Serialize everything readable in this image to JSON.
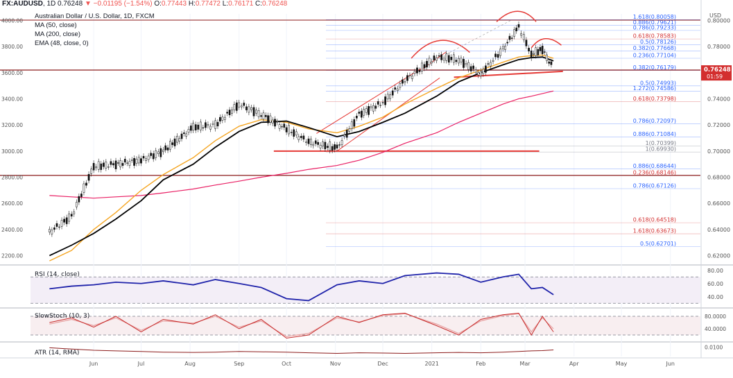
{
  "header": {
    "symbol": "FX:AUDUSD",
    "interval": "1D",
    "last": "0.76248",
    "arrow": "▼",
    "change": "−0.01195 (−1.54%)",
    "o_label": "O:",
    "o": "0.77443",
    "h_label": "H:",
    "h": "0.77472",
    "l_label": "L:",
    "l": "0.76171",
    "c_label": "C:",
    "c": "0.76248"
  },
  "legend": {
    "title": "Australian Dollar / U.S. Dollar, 1D, FXCM",
    "ma50": "MA (50, close)",
    "ma200": "MA (200, close)",
    "ema48": "EMA (48, close, 0)"
  },
  "price_badge": {
    "price": "0.76248",
    "countdown": "01:59",
    "color": "#d32f2f"
  },
  "currency": "USD",
  "colors": {
    "price": "#000000",
    "ma50": "#000000",
    "ma200": "#e91e63",
    "ema48": "#f5a623",
    "drawing": "#e53935",
    "fib_blue": "#2962ff",
    "fib_red": "#d32f2f",
    "rsi": "#1e22aa",
    "stoch_k": "#c62828",
    "stoch_d": "#e8a0a0",
    "atr": "#8b1a1a"
  },
  "chart_data": [
    {
      "type": "line",
      "title": "Australian Dollar / U.S. Dollar, 1D, FXCM",
      "series_names": [
        "MA (50, close)",
        "MA (200, close)",
        "EMA (48, close, 0)"
      ],
      "x": [
        "2020-05-04",
        "2020-05-18",
        "2020-06-01",
        "2020-06-15",
        "2020-07-01",
        "2020-07-15",
        "2020-08-03",
        "2020-08-17",
        "2020-09-01",
        "2020-09-15",
        "2020-10-01",
        "2020-10-15",
        "2020-11-02",
        "2020-11-16",
        "2020-12-01",
        "2020-12-15",
        "2021-01-04",
        "2021-01-18",
        "2021-02-01",
        "2021-02-15",
        "2021-02-25",
        "2021-03-05",
        "2021-03-12",
        "2021-03-19"
      ],
      "price": [
        0.638,
        0.65,
        0.688,
        0.69,
        0.693,
        0.7,
        0.718,
        0.72,
        0.736,
        0.728,
        0.717,
        0.707,
        0.702,
        0.728,
        0.737,
        0.754,
        0.772,
        0.77,
        0.759,
        0.778,
        0.795,
        0.774,
        0.778,
        0.7625
      ],
      "ma50": [
        0.62,
        0.628,
        0.637,
        0.648,
        0.662,
        0.678,
        0.69,
        0.703,
        0.715,
        0.722,
        0.723,
        0.718,
        0.711,
        0.715,
        0.722,
        0.729,
        0.742,
        0.753,
        0.76,
        0.766,
        0.77,
        0.7715,
        0.772,
        0.769
      ],
      "ma200": [
        0.666,
        0.665,
        0.664,
        0.665,
        0.666,
        0.668,
        0.671,
        0.674,
        0.677,
        0.68,
        0.683,
        0.686,
        0.689,
        0.693,
        0.699,
        0.706,
        0.714,
        0.722,
        0.729,
        0.736,
        0.74,
        0.742,
        0.744,
        0.746
      ],
      "ema48": [
        0.616,
        0.624,
        0.64,
        0.653,
        0.67,
        0.682,
        0.695,
        0.708,
        0.719,
        0.724,
        0.722,
        0.717,
        0.714,
        0.719,
        0.726,
        0.736,
        0.748,
        0.756,
        0.762,
        0.768,
        0.772,
        0.773,
        0.7735,
        0.771
      ],
      "ylim": [
        0.615,
        0.805
      ],
      "price_axis": [
        "0.80000",
        "0.78000",
        "0.76000",
        "0.74000",
        "0.72000",
        "0.70000",
        "0.68000",
        "0.66000",
        "0.64000",
        "0.62000"
      ],
      "left_axis": [
        "4000.00",
        "3800.00",
        "3600.00",
        "3400.00",
        "3200.00",
        "3000.00",
        "2800.00",
        "2600.00",
        "2400.00",
        "2200.00"
      ],
      "time_axis": [
        "Jun",
        "Jul",
        "Aug",
        "Sep",
        "Oct",
        "Nov",
        "Dec",
        "2021",
        "Feb",
        "Mar",
        "Apr",
        "May",
        "Jun"
      ],
      "fib_labels": [
        {
          "label": "1.618(0.80058)",
          "value": 0.80058,
          "color": "blue"
        },
        {
          "label": "0.886(0.79621)",
          "value": 0.79621,
          "color": "blue"
        },
        {
          "label": "0.786(0.79233)",
          "value": 0.79233,
          "color": "blue"
        },
        {
          "label": "0.618(0.78583)",
          "value": 0.78583,
          "color": "red"
        },
        {
          "label": "0.5(0.78126)",
          "value": 0.78126,
          "color": "blue"
        },
        {
          "label": "0.382(0.77668)",
          "value": 0.77668,
          "color": "blue"
        },
        {
          "label": "0.236(0.77104)",
          "value": 0.77104,
          "color": "blue"
        },
        {
          "label": "0.382(0.76179)",
          "value": 0.76179,
          "color": "blue"
        },
        {
          "label": "0.5(0.74993)",
          "value": 0.74993,
          "color": "blue"
        },
        {
          "label": "1.272(0.74586)",
          "value": 0.74586,
          "color": "blue"
        },
        {
          "label": "0.618(0.73798)",
          "value": 0.73798,
          "color": "red"
        },
        {
          "label": "0.786(0.72097)",
          "value": 0.72097,
          "color": "blue"
        },
        {
          "label": "0.886(0.71084)",
          "value": 0.71084,
          "color": "blue"
        },
        {
          "label": "1(0.70399)",
          "value": 0.70399,
          "color": "gray"
        },
        {
          "label": "1(0.69930)",
          "value": 0.6993,
          "color": "gray"
        },
        {
          "label": "0.886(0.68644)",
          "value": 0.68644,
          "color": "blue"
        },
        {
          "label": "0.236(0.68146)",
          "value": 0.68146,
          "color": "red"
        },
        {
          "label": "0.786(0.67126)",
          "value": 0.67126,
          "color": "blue"
        },
        {
          "label": "0.618(0.64518)",
          "value": 0.64518,
          "color": "red"
        },
        {
          "label": "1.618(0.63673)",
          "value": 0.63673,
          "color": "red"
        },
        {
          "label": "0.5(0.62701)",
          "value": 0.62701,
          "color": "blue"
        }
      ]
    },
    {
      "type": "line",
      "title": "RSI (14, close)",
      "values": [
        52,
        56,
        58,
        62,
        60,
        64,
        58,
        66,
        60,
        54,
        37,
        34,
        58,
        64,
        60,
        72,
        76,
        74,
        62,
        70,
        74,
        52,
        54,
        43
      ],
      "levels": [
        70,
        30
      ],
      "ylim": [
        25,
        85
      ],
      "axis": [
        "80.00",
        "60.00",
        "40.00"
      ]
    },
    {
      "type": "line",
      "title": "SlowStoch (10, 3)",
      "k": [
        60,
        75,
        45,
        80,
        30,
        70,
        55,
        85,
        40,
        70,
        10,
        20,
        80,
        60,
        85,
        90,
        50,
        20,
        70,
        85,
        90,
        20,
        80,
        30
      ],
      "d": [
        55,
        70,
        50,
        75,
        35,
        65,
        58,
        80,
        45,
        65,
        15,
        25,
        75,
        62,
        82,
        88,
        55,
        25,
        65,
        82,
        88,
        30,
        75,
        40
      ],
      "levels": [
        80,
        20
      ],
      "ylim": [
        0,
        100
      ],
      "axis": [
        "80.0000",
        "40.0000"
      ]
    },
    {
      "type": "line",
      "title": "ATR (14, RMA)",
      "values": [
        0.0098,
        0.0094,
        0.009,
        0.0088,
        0.0086,
        0.0084,
        0.0083,
        0.0084,
        0.0086,
        0.0085,
        0.0084,
        0.0082,
        0.008,
        0.0082,
        0.0081,
        0.008,
        0.0082,
        0.0083,
        0.0082,
        0.0084,
        0.0086,
        0.0088,
        0.0089,
        0.0091
      ],
      "ylim": [
        0.007,
        0.011
      ],
      "axis": [
        "0.0100"
      ]
    }
  ]
}
